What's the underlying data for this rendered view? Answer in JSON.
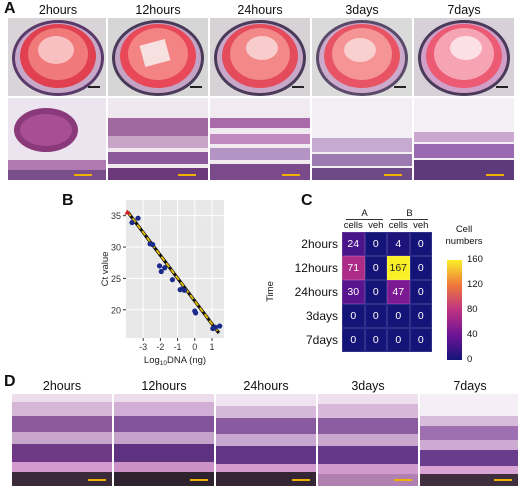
{
  "panels": {
    "A": {
      "letter": "A",
      "timepoints": [
        "2hours",
        "12hours",
        "24hours",
        "3days",
        "7days"
      ]
    },
    "B": {
      "letter": "B",
      "chart_data": {
        "type": "scatter",
        "xlabel": "Log10DNA (ng)",
        "xlabel_main": "Log",
        "xlabel_sub": "10",
        "xlabel_tail": "DNA (ng)",
        "ylabel": "Ct value",
        "xlim": [
          -4,
          1.7
        ],
        "ylim": [
          15.5,
          37.5
        ],
        "xticks": [
          -3,
          -2,
          -1,
          0,
          1
        ],
        "xtick_labels": [
          "-3",
          "-2",
          "-1",
          "0",
          "1"
        ],
        "yticks": [
          20,
          25,
          30,
          35
        ],
        "ytick_labels": [
          "20",
          "25",
          "30",
          "35"
        ],
        "grid": true,
        "fit_line": {
          "x": [
            -3.9,
            1.4
          ],
          "y": [
            35.6,
            16.3
          ],
          "color": "#e8c000",
          "style": "dashed"
        },
        "outlier": {
          "x": -3.92,
          "y": 35.5,
          "color": "#d32020"
        },
        "points": [
          {
            "x": -3.65,
            "y": 33.9
          },
          {
            "x": -3.3,
            "y": 34.6
          },
          {
            "x": -2.6,
            "y": 30.5
          },
          {
            "x": -2.45,
            "y": 30.4
          },
          {
            "x": -2.05,
            "y": 27.0
          },
          {
            "x": -1.95,
            "y": 26.1
          },
          {
            "x": -1.75,
            "y": 26.7
          },
          {
            "x": -1.3,
            "y": 24.8
          },
          {
            "x": -0.85,
            "y": 23.2
          },
          {
            "x": -0.75,
            "y": 23.3
          },
          {
            "x": -0.6,
            "y": 23.1
          },
          {
            "x": 0.0,
            "y": 19.8
          },
          {
            "x": 0.05,
            "y": 19.5
          },
          {
            "x": 1.05,
            "y": 17.0
          },
          {
            "x": 1.2,
            "y": 17.2
          },
          {
            "x": 1.45,
            "y": 17.4
          }
        ],
        "point_color": "#1a2a8a",
        "background": "#e8e8e8"
      }
    },
    "C": {
      "letter": "C",
      "chart_data": {
        "type": "heatmap",
        "groups": [
          "A",
          "B"
        ],
        "columns": [
          "cells",
          "veh",
          "cells",
          "veh"
        ],
        "rows": [
          "2hours",
          "12hours",
          "24hours",
          "3days",
          "7days"
        ],
        "ylabel": "Time",
        "values": [
          [
            24,
            0,
            4,
            0
          ],
          [
            71,
            0,
            167,
            0
          ],
          [
            30,
            0,
            47,
            0
          ],
          [
            0,
            0,
            0,
            0
          ],
          [
            0,
            0,
            0,
            0
          ]
        ],
        "colorbar": {
          "title_line1": "Cell",
          "title_line2": "numbers",
          "ticks": [
            "160",
            "120",
            "80",
            "40",
            "0"
          ],
          "range": [
            0,
            160
          ]
        }
      }
    },
    "D": {
      "letter": "D",
      "timepoints": [
        "2hours",
        "12hours",
        "24hours",
        "3days",
        "7days"
      ]
    }
  }
}
